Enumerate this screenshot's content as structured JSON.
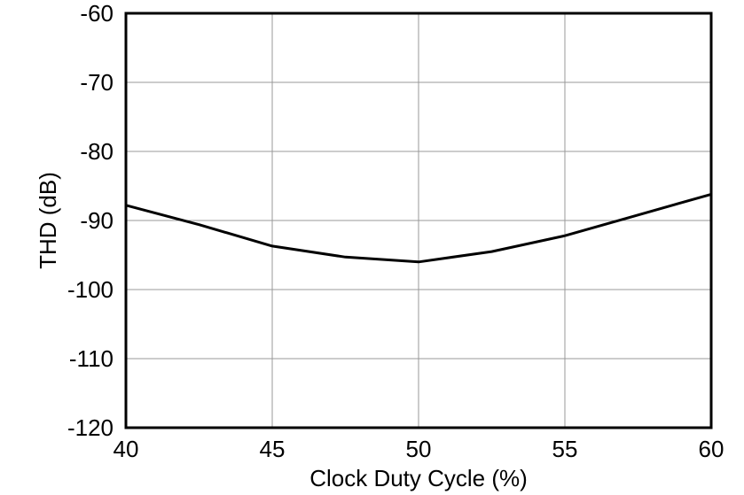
{
  "chart_data": {
    "type": "line",
    "title": "",
    "xlabel": "Clock Duty Cycle (%)",
    "ylabel": "THD (dB)",
    "xlim": [
      40,
      60
    ],
    "ylim": [
      -120,
      -60
    ],
    "xticks": [
      40,
      45,
      50,
      55,
      60
    ],
    "yticks": [
      -60,
      -70,
      -80,
      -90,
      -100,
      -110,
      -120
    ],
    "grid": true,
    "legend": "none",
    "series": [
      {
        "name": "THD",
        "x": [
          40,
          42.5,
          45,
          47.5,
          50,
          52.5,
          55,
          57.5,
          60
        ],
        "y": [
          -87.8,
          -90.6,
          -93.7,
          -95.3,
          -96.0,
          -94.5,
          -92.2,
          -89.2,
          -86.2
        ]
      }
    ],
    "colors": {
      "line": "#000000",
      "grid": "#999999",
      "border": "#000000",
      "background": "#ffffff",
      "text": "#000000"
    }
  }
}
